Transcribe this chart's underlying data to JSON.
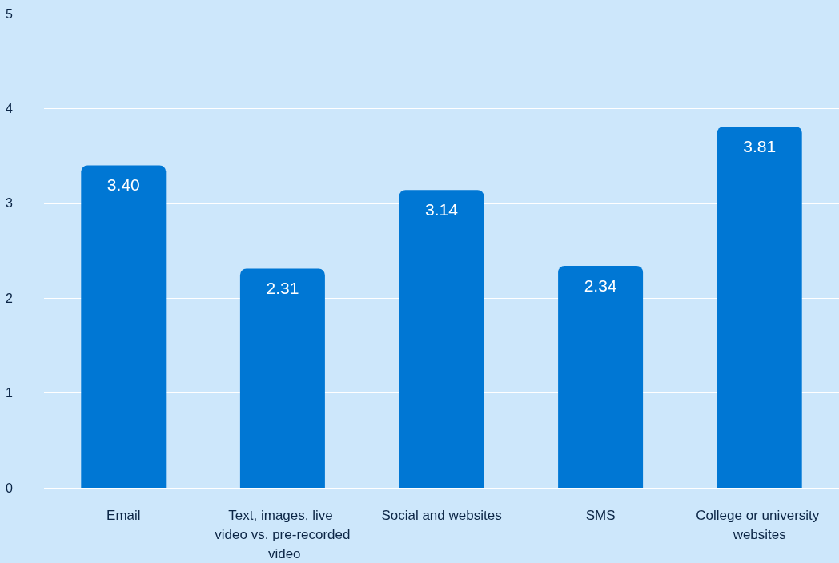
{
  "chart_data": {
    "type": "bar",
    "categories": [
      "Email",
      "Text, images, live video vs. pre-recorded video",
      "Social and websites",
      "SMS",
      "College or university websites"
    ],
    "values": [
      3.4,
      2.31,
      3.14,
      2.34,
      3.81
    ],
    "value_labels": [
      "3.40",
      "2.31",
      "3.14",
      "2.34",
      "3.81"
    ],
    "color": "#0077d4",
    "ylim": [
      0,
      5
    ],
    "yticks": [
      0,
      1,
      2,
      3,
      4,
      5
    ],
    "grid": "y"
  }
}
